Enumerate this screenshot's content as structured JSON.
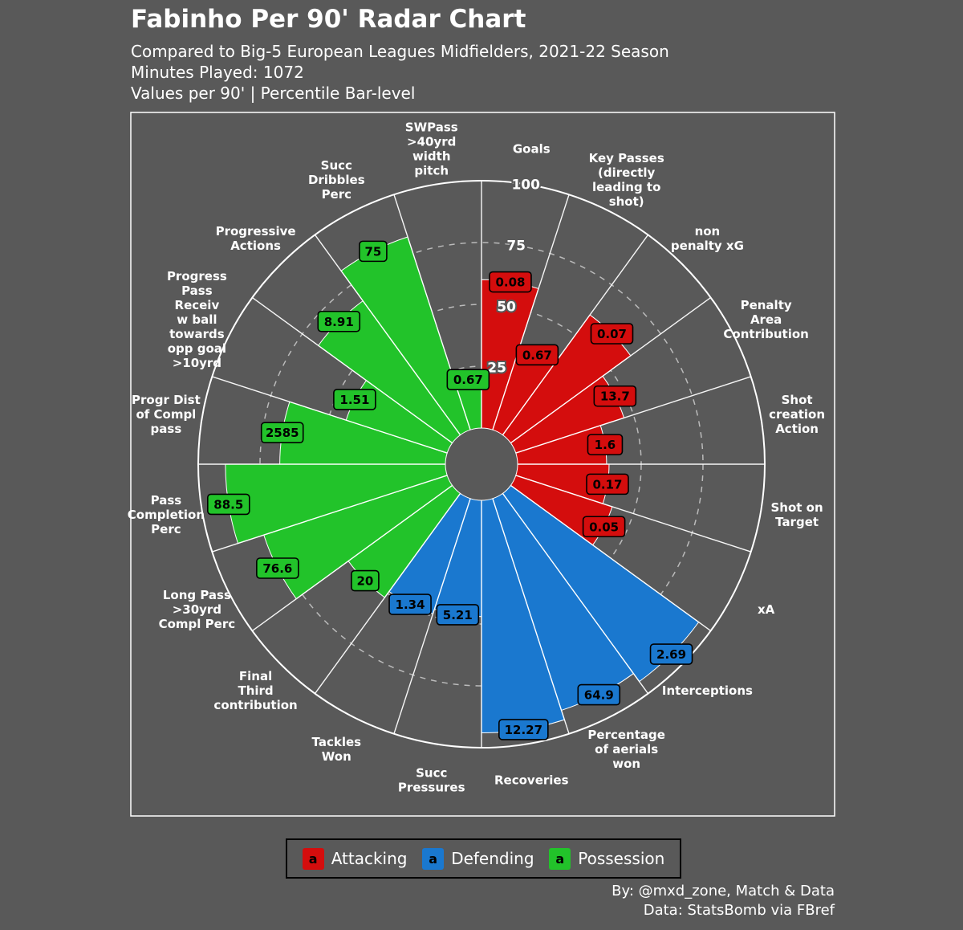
{
  "header": {
    "title": "Fabinho Per 90' Radar Chart",
    "subtitle": "Compared to Big-5 European Leagues Midfielders, 2021-22 Season",
    "minutes": "Minutes Played: 1072",
    "note": "Values per 90' | Percentile Bar-level"
  },
  "credits": {
    "line1": "By: @mxd_zone, Match & Data",
    "line2": "Data: StatsBomb via FBref"
  },
  "legend": {
    "swatch_letter": "a",
    "items": [
      {
        "label": "Attacking",
        "color": "#d40d0d"
      },
      {
        "label": "Defending",
        "color": "#1a78cf"
      },
      {
        "label": "Possession",
        "color": "#22c32a"
      }
    ]
  },
  "chart_data": {
    "type": "pizza-bar-radar",
    "title": "Fabinho Per 90' Radar Chart",
    "direction": "clockwise-from-top",
    "rlim": [
      0,
      100
    ],
    "rticks": [
      25,
      50,
      75,
      100
    ],
    "grid": "dashed-rings",
    "legend_position": "bottom-center",
    "groups": {
      "attacking": "#d40d0d",
      "defending": "#1a78cf",
      "possession": "#22c32a"
    },
    "style": {
      "background": "#595959",
      "ring_color": "#d3d3d3",
      "axis_color": "#ffffff",
      "value_text_color": "#000000",
      "label_text_color": "#ffffff"
    },
    "params": [
      {
        "label": "Goals",
        "value": "0.08",
        "percentile": 60,
        "group": "attacking"
      },
      {
        "label": "Key Passes\n(directly\nleading to\nshot)",
        "value": "0.67",
        "percentile": 35,
        "group": "attacking"
      },
      {
        "label": "non\npenalty xG",
        "value": "0.07",
        "percentile": 60,
        "group": "attacking"
      },
      {
        "label": "Penalty\nArea\nContribution",
        "value": "13.7",
        "percentile": 46,
        "group": "attacking"
      },
      {
        "label": "Shot\ncreation\nAction",
        "value": "1.6",
        "percentile": 36,
        "group": "attacking"
      },
      {
        "label": "Shot on\nTarget",
        "value": "0.17",
        "percentile": 37,
        "group": "attacking"
      },
      {
        "label": "xA",
        "value": "0.05",
        "percentile": 41,
        "group": "attacking"
      },
      {
        "label": "Interceptions",
        "value": "2.69",
        "percentile": 94,
        "group": "defending"
      },
      {
        "label": "Percentage\nof aerials\nwon",
        "value": "64.9",
        "percentile": 90,
        "group": "defending"
      },
      {
        "label": "Recoveries",
        "value": "12.27",
        "percentile": 94,
        "group": "defending"
      },
      {
        "label": "Succ\nPressures",
        "value": "5.21",
        "percentile": 47,
        "group": "defending"
      },
      {
        "label": "Tackles\nWon",
        "value": "1.34",
        "percentile": 49,
        "group": "defending"
      },
      {
        "label": "Final\nThird\ncontribution",
        "value": "20",
        "percentile": 52,
        "group": "possession"
      },
      {
        "label": "Long Pass\n>30yrd\nCompl Perc",
        "value": "76.6",
        "percentile": 78,
        "group": "possession"
      },
      {
        "label": "Pass\nCompletion\nPerc",
        "value": "88.5",
        "percentile": 89,
        "group": "possession"
      },
      {
        "label": "Progr Dist\nof Compl\npass",
        "value": "2585",
        "percentile": 67,
        "group": "possession"
      },
      {
        "label": "Progress\nPass\nReceiv\nw ball\ntowards\nopp goal\n>10yrd",
        "value": "1.51",
        "percentile": 43,
        "group": "possession"
      },
      {
        "label": "Progressive\nActions",
        "value": "8.91",
        "percentile": 67,
        "group": "possession"
      },
      {
        "label": "Succ\nDribbles\nPerc",
        "value": "75",
        "percentile": 82,
        "group": "possession"
      },
      {
        "label": "SWPass\n>40yrd\nwidth\npitch",
        "value": "0.67",
        "percentile": 20,
        "group": "possession"
      }
    ]
  }
}
